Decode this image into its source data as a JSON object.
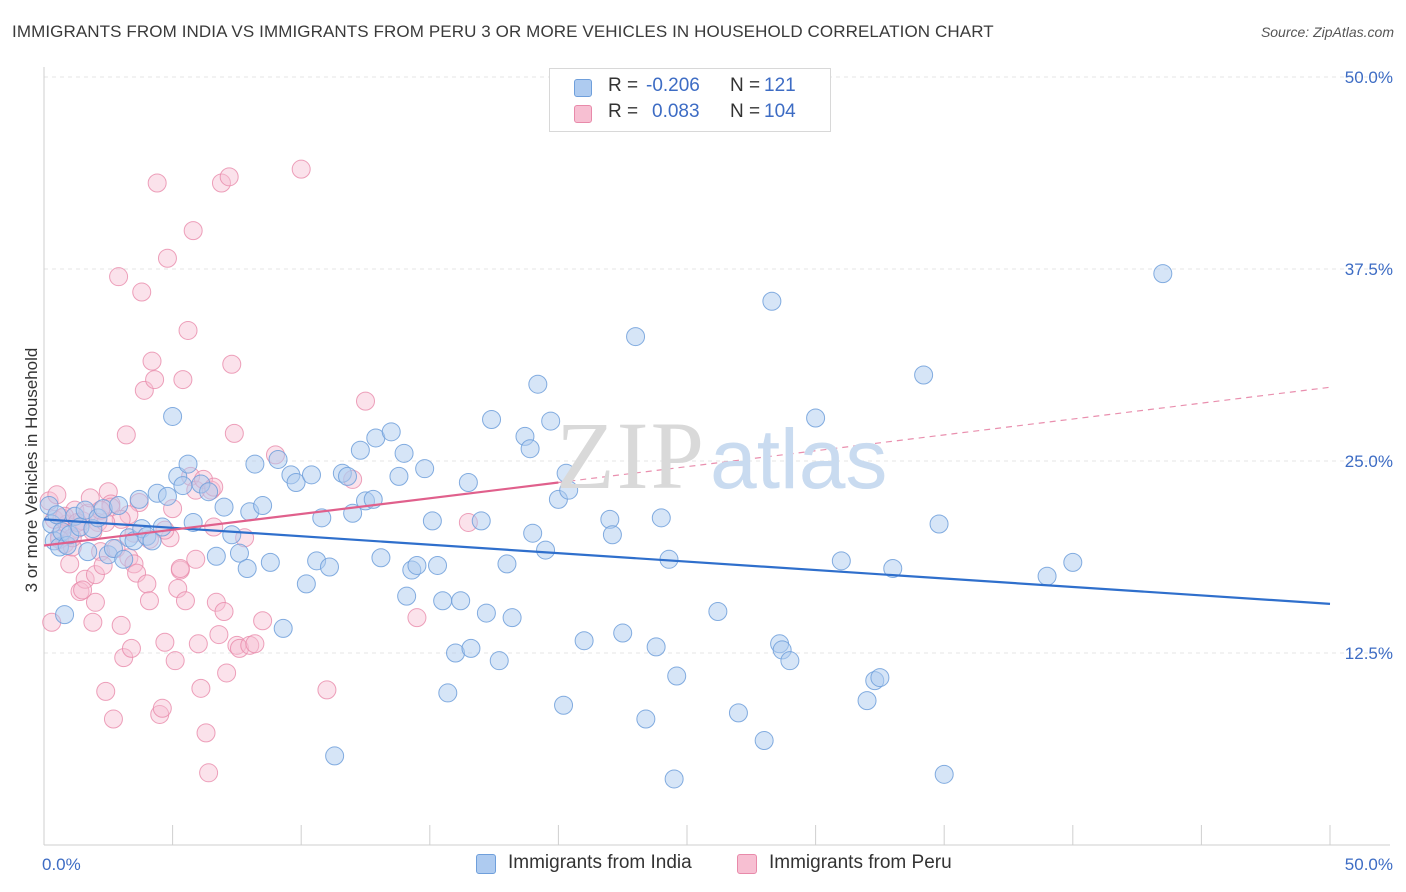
{
  "title": "IMMIGRANTS FROM INDIA VS IMMIGRANTS FROM PERU 3 OR MORE VEHICLES IN HOUSEHOLD CORRELATION CHART",
  "source": "Source: ZipAtlas.com",
  "watermark": {
    "part1": "ZIP",
    "part2": "atlas"
  },
  "legend": {
    "r_label": "R =",
    "n_label": "N =",
    "rows": [
      {
        "r": "-0.206",
        "n": "121"
      },
      {
        "r": "0.083",
        "n": "104"
      }
    ]
  },
  "colors": {
    "india_fill": "#aecbf0",
    "india_stroke": "#6f9fdb",
    "india_line": "#2f6fcc",
    "peru_fill": "#f7bfd2",
    "peru_stroke": "#e88aaa",
    "peru_line": "#e0608c",
    "tick_label": "#3d6cc4",
    "grid": "#e4e4e4"
  },
  "chart_data": {
    "type": "scatter",
    "title": "IMMIGRANTS FROM INDIA VS IMMIGRANTS FROM PERU 3 OR MORE VEHICLES IN HOUSEHOLD CORRELATION CHART",
    "xlabel": "",
    "ylabel": "3 or more Vehicles in Household",
    "xlim": [
      0,
      50
    ],
    "ylim": [
      0,
      50
    ],
    "x_tick_labels": {
      "min": "0.0%",
      "max": "50.0%"
    },
    "y_ticks": [
      12.5,
      25.0,
      37.5,
      50.0
    ],
    "y_tick_labels": [
      "12.5%",
      "25.0%",
      "37.5%",
      "50.0%"
    ],
    "grid": true,
    "legend_position": "top-center",
    "series": [
      {
        "name": "Immigrants from India",
        "r": -0.206,
        "n": 121,
        "trend": {
          "x": [
            0,
            50
          ],
          "y": [
            21.2,
            15.7
          ]
        },
        "points": [
          [
            0.2,
            22.1
          ],
          [
            0.3,
            20.9
          ],
          [
            0.4,
            19.8
          ],
          [
            0.5,
            21.5
          ],
          [
            0.6,
            19.4
          ],
          [
            0.7,
            20.4
          ],
          [
            0.8,
            15.0
          ],
          [
            0.9,
            19.5
          ],
          [
            1.0,
            20.2
          ],
          [
            1.2,
            21.4
          ],
          [
            1.4,
            20.7
          ],
          [
            1.6,
            21.8
          ],
          [
            1.7,
            19.1
          ],
          [
            1.9,
            20.6
          ],
          [
            2.1,
            21.3
          ],
          [
            2.3,
            21.9
          ],
          [
            2.5,
            18.9
          ],
          [
            2.7,
            19.3
          ],
          [
            2.9,
            22.1
          ],
          [
            3.1,
            18.6
          ],
          [
            3.3,
            20.0
          ],
          [
            3.5,
            19.8
          ],
          [
            3.7,
            22.5
          ],
          [
            3.8,
            20.6
          ],
          [
            4.0,
            20.1
          ],
          [
            4.2,
            19.8
          ],
          [
            4.4,
            22.9
          ],
          [
            4.6,
            20.7
          ],
          [
            4.8,
            22.7
          ],
          [
            5.0,
            27.9
          ],
          [
            5.2,
            24.0
          ],
          [
            5.4,
            23.4
          ],
          [
            5.6,
            24.8
          ],
          [
            5.8,
            21.0
          ],
          [
            6.1,
            23.5
          ],
          [
            6.4,
            23.0
          ],
          [
            6.7,
            18.8
          ],
          [
            7.0,
            22.0
          ],
          [
            7.3,
            20.2
          ],
          [
            7.6,
            19.0
          ],
          [
            7.9,
            18.0
          ],
          [
            8.0,
            21.7
          ],
          [
            8.2,
            24.8
          ],
          [
            8.5,
            22.1
          ],
          [
            8.8,
            18.4
          ],
          [
            9.1,
            25.1
          ],
          [
            9.3,
            14.1
          ],
          [
            9.6,
            24.1
          ],
          [
            9.8,
            23.6
          ],
          [
            10.2,
            17.0
          ],
          [
            10.4,
            24.1
          ],
          [
            10.6,
            18.5
          ],
          [
            10.8,
            21.3
          ],
          [
            11.1,
            18.1
          ],
          [
            11.3,
            5.8
          ],
          [
            11.6,
            24.2
          ],
          [
            11.8,
            24.0
          ],
          [
            12.0,
            21.6
          ],
          [
            12.3,
            25.7
          ],
          [
            12.5,
            22.4
          ],
          [
            12.8,
            22.5
          ],
          [
            12.9,
            26.5
          ],
          [
            13.1,
            18.7
          ],
          [
            13.5,
            26.9
          ],
          [
            13.8,
            24.0
          ],
          [
            14.0,
            25.5
          ],
          [
            14.1,
            16.2
          ],
          [
            14.3,
            17.9
          ],
          [
            14.5,
            18.2
          ],
          [
            14.8,
            24.5
          ],
          [
            15.1,
            21.1
          ],
          [
            15.3,
            18.2
          ],
          [
            15.5,
            15.9
          ],
          [
            15.7,
            9.9
          ],
          [
            16.0,
            12.5
          ],
          [
            16.2,
            15.9
          ],
          [
            16.5,
            23.6
          ],
          [
            16.6,
            12.8
          ],
          [
            17.0,
            21.1
          ],
          [
            17.2,
            15.1
          ],
          [
            17.4,
            27.7
          ],
          [
            17.7,
            12.0
          ],
          [
            18.0,
            18.3
          ],
          [
            18.2,
            14.8
          ],
          [
            18.7,
            26.6
          ],
          [
            18.9,
            25.8
          ],
          [
            19.0,
            20.3
          ],
          [
            19.2,
            30.0
          ],
          [
            19.5,
            19.2
          ],
          [
            19.7,
            27.6
          ],
          [
            20.0,
            22.5
          ],
          [
            20.2,
            9.1
          ],
          [
            20.3,
            24.2
          ],
          [
            20.4,
            23.1
          ],
          [
            21.0,
            13.3
          ],
          [
            22.0,
            21.2
          ],
          [
            22.1,
            20.2
          ],
          [
            22.5,
            13.8
          ],
          [
            23.0,
            33.1
          ],
          [
            23.4,
            8.2
          ],
          [
            23.8,
            12.9
          ],
          [
            24.0,
            21.3
          ],
          [
            24.3,
            18.6
          ],
          [
            24.5,
            4.3
          ],
          [
            24.6,
            11.0
          ],
          [
            26.2,
            15.2
          ],
          [
            27.0,
            8.6
          ],
          [
            28.0,
            6.8
          ],
          [
            28.3,
            35.4
          ],
          [
            28.6,
            13.1
          ],
          [
            28.7,
            12.7
          ],
          [
            29.0,
            12.0
          ],
          [
            30.0,
            27.8
          ],
          [
            31.0,
            18.5
          ],
          [
            32.0,
            9.4
          ],
          [
            32.3,
            10.7
          ],
          [
            32.5,
            10.9
          ],
          [
            33.0,
            18.0
          ],
          [
            34.2,
            30.6
          ],
          [
            34.8,
            20.9
          ],
          [
            35.0,
            4.6
          ],
          [
            39.0,
            17.5
          ],
          [
            40.0,
            18.4
          ],
          [
            43.5,
            37.2
          ]
        ]
      },
      {
        "name": "Immigrants from Peru",
        "r": 0.083,
        "n": 104,
        "trend": {
          "x": [
            0,
            20
          ],
          "y": [
            19.5,
            23.6
          ]
        },
        "trend_extension": {
          "x": [
            20,
            50
          ],
          "y": [
            23.6,
            29.8
          ]
        },
        "points": [
          [
            0.2,
            22.4
          ],
          [
            0.3,
            14.5
          ],
          [
            0.4,
            21.2
          ],
          [
            0.5,
            22.8
          ],
          [
            0.6,
            20.1
          ],
          [
            0.7,
            21.3
          ],
          [
            0.8,
            19.6
          ],
          [
            0.9,
            20.9
          ],
          [
            1.0,
            18.3
          ],
          [
            1.1,
            19.4
          ],
          [
            1.2,
            21.8
          ],
          [
            1.3,
            20.6
          ],
          [
            1.4,
            16.5
          ],
          [
            1.5,
            21.1
          ],
          [
            1.6,
            17.3
          ],
          [
            1.7,
            21.6
          ],
          [
            1.8,
            22.6
          ],
          [
            1.9,
            14.5
          ],
          [
            2.0,
            17.6
          ],
          [
            2.1,
            21.0
          ],
          [
            2.2,
            19.1
          ],
          [
            2.3,
            18.2
          ],
          [
            2.4,
            10.0
          ],
          [
            2.5,
            23.0
          ],
          [
            2.6,
            22.2
          ],
          [
            2.7,
            8.2
          ],
          [
            2.8,
            19.3
          ],
          [
            2.9,
            37.0
          ],
          [
            3.0,
            14.3
          ],
          [
            3.1,
            12.2
          ],
          [
            3.2,
            26.7
          ],
          [
            3.3,
            18.7
          ],
          [
            3.4,
            12.8
          ],
          [
            3.5,
            18.3
          ],
          [
            3.6,
            17.7
          ],
          [
            3.7,
            22.3
          ],
          [
            3.8,
            36.0
          ],
          [
            3.9,
            29.6
          ],
          [
            4.0,
            17.0
          ],
          [
            4.1,
            15.9
          ],
          [
            4.2,
            31.5
          ],
          [
            4.3,
            30.3
          ],
          [
            4.4,
            43.1
          ],
          [
            4.5,
            8.5
          ],
          [
            4.6,
            8.9
          ],
          [
            4.7,
            13.2
          ],
          [
            4.8,
            38.2
          ],
          [
            4.9,
            20.0
          ],
          [
            5.0,
            21.9
          ],
          [
            5.1,
            12.0
          ],
          [
            5.2,
            16.7
          ],
          [
            5.3,
            17.9
          ],
          [
            5.4,
            30.3
          ],
          [
            5.5,
            15.9
          ],
          [
            5.6,
            33.5
          ],
          [
            5.7,
            24.0
          ],
          [
            5.8,
            40.0
          ],
          [
            5.9,
            23.1
          ],
          [
            6.0,
            13.1
          ],
          [
            6.1,
            10.2
          ],
          [
            6.2,
            23.8
          ],
          [
            6.3,
            7.3
          ],
          [
            6.4,
            4.7
          ],
          [
            6.5,
            23.1
          ],
          [
            6.6,
            23.3
          ],
          [
            6.7,
            15.8
          ],
          [
            6.8,
            13.7
          ],
          [
            6.9,
            43.1
          ],
          [
            7.0,
            15.2
          ],
          [
            7.1,
            11.2
          ],
          [
            7.2,
            43.5
          ],
          [
            7.3,
            31.3
          ],
          [
            7.4,
            26.8
          ],
          [
            7.5,
            13.0
          ],
          [
            7.6,
            12.8
          ],
          [
            7.8,
            20.0
          ],
          [
            8.0,
            13.0
          ],
          [
            8.2,
            13.1
          ],
          [
            8.5,
            14.6
          ],
          [
            9.0,
            25.4
          ],
          [
            10.0,
            44.0
          ],
          [
            11.0,
            10.1
          ],
          [
            12.0,
            23.8
          ],
          [
            12.5,
            28.9
          ],
          [
            14.5,
            14.8
          ],
          [
            16.5,
            21.0
          ],
          [
            2.0,
            15.8
          ],
          [
            1.5,
            16.6
          ],
          [
            0.8,
            21.4
          ],
          [
            1.1,
            20.0
          ],
          [
            2.6,
            22.0
          ],
          [
            3.3,
            21.5
          ],
          [
            4.1,
            19.9
          ],
          [
            5.9,
            18.6
          ],
          [
            6.6,
            20.7
          ],
          [
            3.0,
            21.2
          ],
          [
            1.9,
            20.4
          ],
          [
            2.4,
            21.0
          ],
          [
            4.7,
            20.5
          ],
          [
            5.3,
            18.0
          ],
          [
            0.6,
            19.9
          ],
          [
            1.3,
            21.0
          ],
          [
            2.2,
            21.8
          ],
          [
            3.5,
            20.3
          ]
        ]
      }
    ]
  }
}
